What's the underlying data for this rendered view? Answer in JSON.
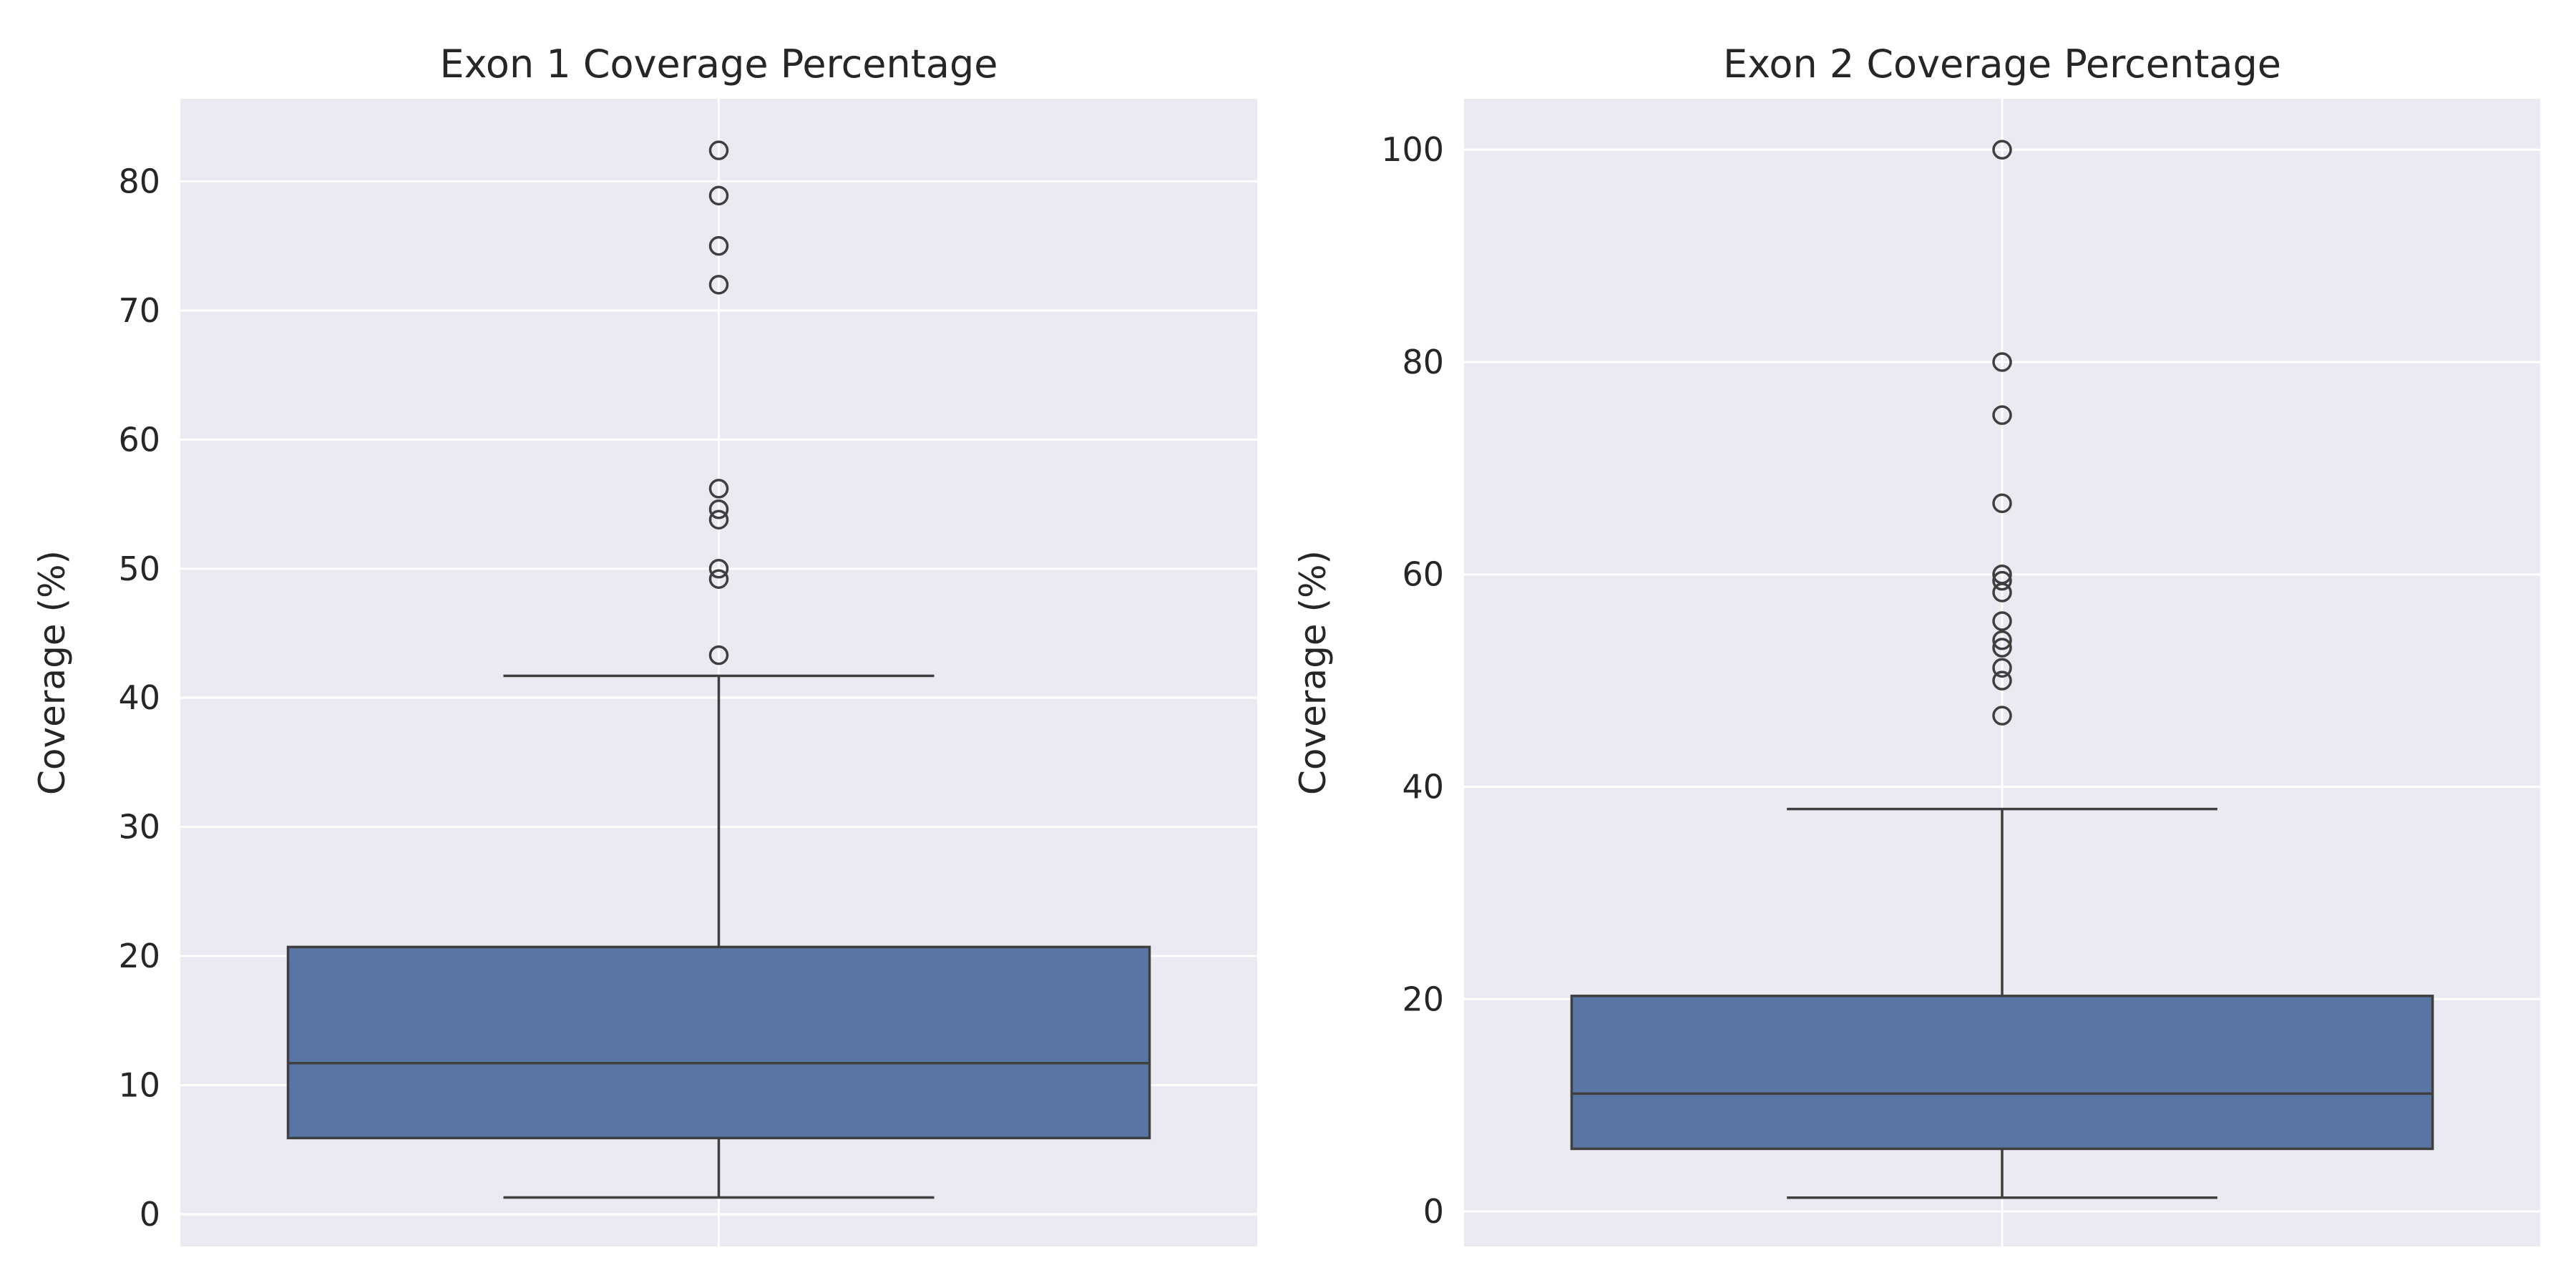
{
  "chart_data": [
    {
      "type": "box",
      "title": "Exon 1 Coverage Percentage",
      "ylabel": "Coverage (%)",
      "xlabel": "",
      "ylim": [
        -2.5,
        86.4
      ],
      "yticks": [
        0,
        10,
        20,
        30,
        40,
        50,
        60,
        70,
        80
      ],
      "grid": true,
      "box": {
        "whisker_low": 1.3,
        "q1": 5.9,
        "median": 11.7,
        "q3": 20.7,
        "whisker_high": 41.7,
        "color": "#5875a4"
      },
      "fliers": [
        43.3,
        49.2,
        50.0,
        53.8,
        54.6,
        56.2,
        72.0,
        75.0,
        78.9,
        82.4
      ]
    },
    {
      "type": "box",
      "title": "Exon 2 Coverage Percentage",
      "ylabel": "Coverage (%)",
      "xlabel": "",
      "ylim": [
        -3.3,
        104.8
      ],
      "yticks": [
        0,
        20,
        40,
        60,
        80,
        100
      ],
      "grid": true,
      "box": {
        "whisker_low": 1.3,
        "q1": 5.9,
        "median": 11.1,
        "q3": 20.3,
        "whisker_high": 37.9,
        "color": "#5875a4"
      },
      "fliers": [
        46.7,
        50.0,
        51.2,
        53.1,
        53.8,
        55.6,
        58.3,
        59.4,
        60.0,
        66.7,
        75.0,
        80.0,
        100.0
      ]
    }
  ]
}
